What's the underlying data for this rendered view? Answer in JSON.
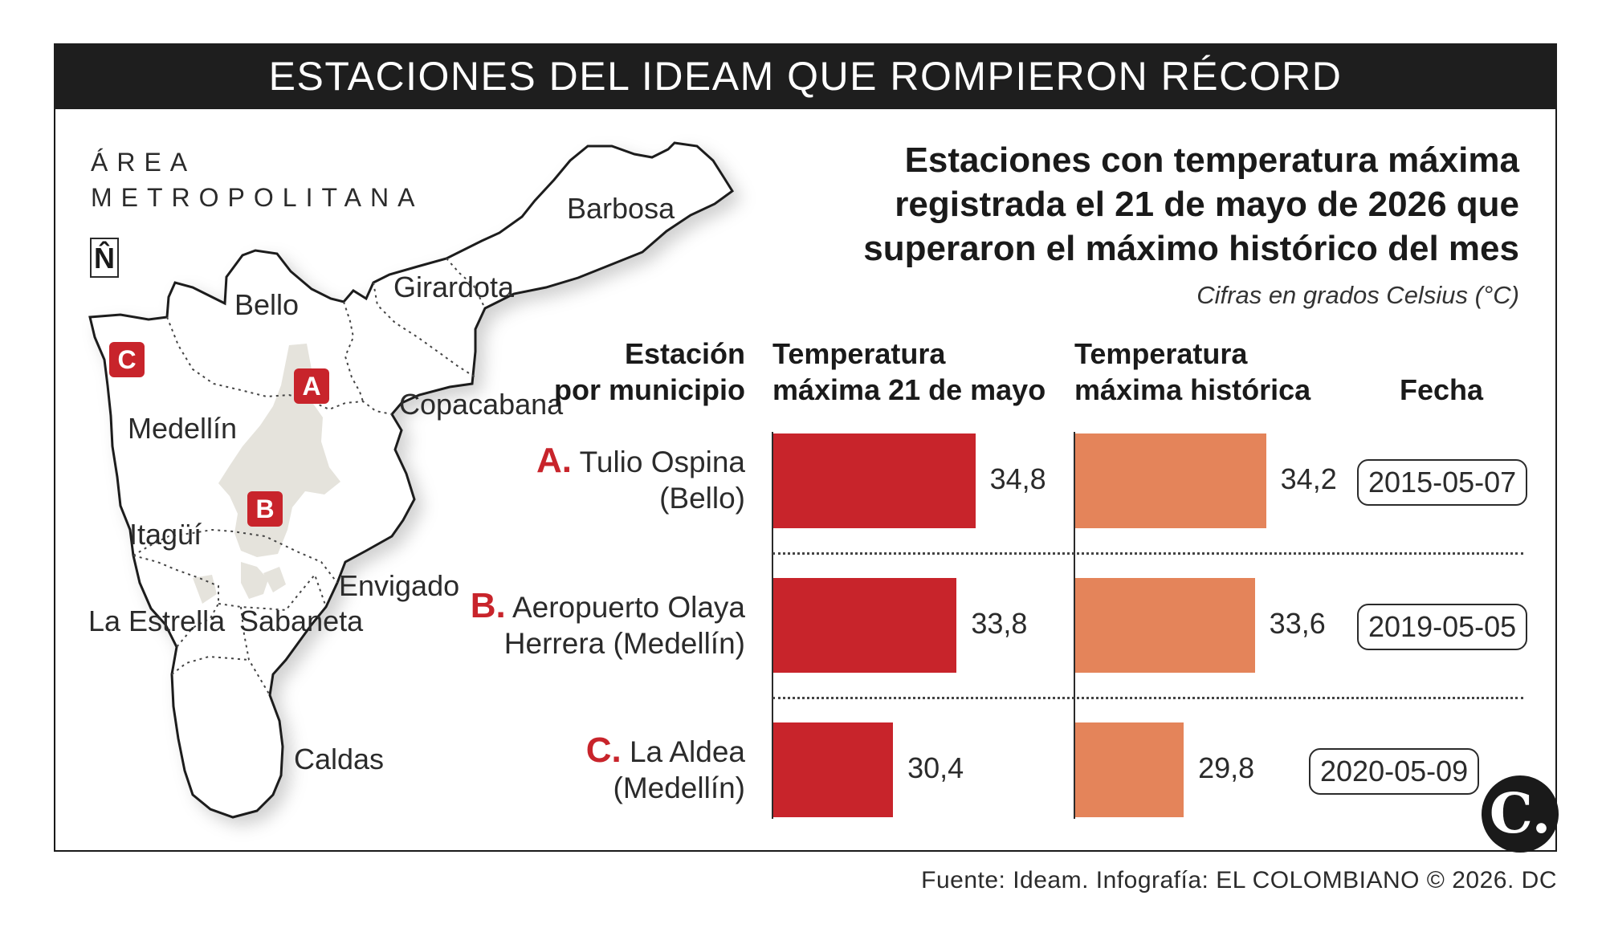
{
  "title": "ESTACIONES DEL IDEAM QUE ROMPIERON RÉCORD",
  "map": {
    "area_label_line1": "ÁREA",
    "area_label_line2": "METROPOLITANA",
    "north_label": "N̂",
    "municipalities": [
      "Barbosa",
      "Girardota",
      "Bello",
      "Copacabana",
      "Medellín",
      "Itagüí",
      "Envigado",
      "La Estrella",
      "Sabaneta",
      "Caldas"
    ],
    "markers": [
      "A",
      "B",
      "C"
    ]
  },
  "chart_data": {
    "type": "bar",
    "title": "Estaciones con temperatura máxima registrada el 21 de mayo de 2026 que superaron el máximo histórico del mes",
    "subtitle": "Cifras en grados Celsius (°C)",
    "column_headers": {
      "station": [
        "Estación",
        "por municipio"
      ],
      "current": [
        "Temperatura",
        "máxima 21 de mayo"
      ],
      "historic": [
        "Temperatura",
        "máxima histórica"
      ],
      "date": "Fecha"
    },
    "categories": [
      {
        "letter": "A.",
        "line1": "Tulio Ospina",
        "line2": "(Bello)"
      },
      {
        "letter": "B.",
        "line1": "Aeropuerto Olaya",
        "line2": "Herrera (Medellín)"
      },
      {
        "letter": "C.",
        "line1": "La Aldea",
        "line2": "(Medellín)"
      }
    ],
    "series": [
      {
        "name": "Temperatura máxima 21 de mayo",
        "values": [
          34.8,
          33.8,
          30.4
        ],
        "labels": [
          "34,8",
          "33,8",
          "30,4"
        ],
        "color": "#c8242b"
      },
      {
        "name": "Temperatura máxima histórica",
        "values": [
          34.2,
          33.6,
          29.8
        ],
        "labels": [
          "34,2",
          "33,6",
          "29,8"
        ],
        "color": "#e4845a"
      }
    ],
    "dates": [
      "2015-05-07",
      "2019-05-05",
      "2020-05-09"
    ]
  },
  "footer": "Fuente: Ideam. Infografía: EL COLOMBIANO © 2026. DC",
  "logo": "C."
}
